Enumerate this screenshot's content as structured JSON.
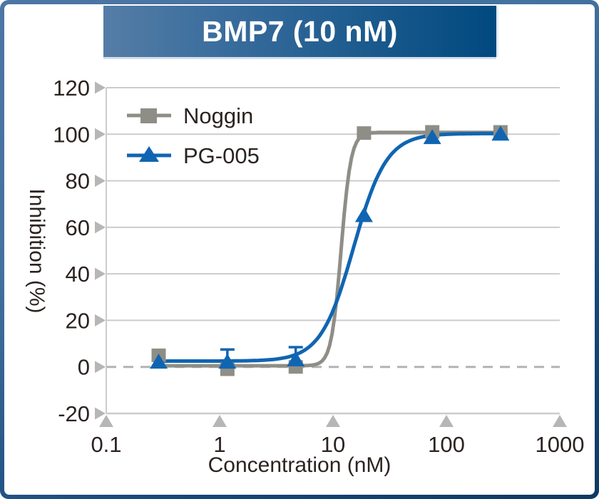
{
  "figure": {
    "title": "BMP7 (10 nM)"
  },
  "colors": {
    "banner_gradient_left": "#557da6",
    "banner_gradient_right": "#00497f",
    "frame_border_top": "#4d76a4",
    "frame_border_bottom": "#0e3a63",
    "grid_line": "#cccccc",
    "zero_dash_line": "#b3b3b3",
    "tick_triangle": "#b6b6b6",
    "text": "#2b2320",
    "series_noggin": "#8f8e86",
    "series_pg005": "#1065b2"
  },
  "chart_data": {
    "type": "line",
    "title": "BMP7 (10 nM)",
    "xlabel": "Concentration (nM)",
    "ylabel": "Inhibition (%)",
    "x_scale": "log",
    "xlim": [
      0.1,
      1000
    ],
    "ylim": [
      -20,
      120
    ],
    "x_ticks": [
      0.1,
      1,
      10,
      100,
      1000
    ],
    "y_ticks": [
      120,
      100,
      80,
      60,
      40,
      20,
      0,
      -20
    ],
    "grid": "horizontal",
    "zero_line_style": "dashed",
    "legend_position": "top-left",
    "series": [
      {
        "name": "Noggin",
        "color": "#8f8e86",
        "marker": "square",
        "x": [
          0.29,
          1.17,
          4.69,
          18.75,
          75,
          300
        ],
        "y": [
          5,
          -1,
          0,
          100.5,
          101,
          101
        ],
        "y_err_up": [
          0,
          0,
          0,
          0,
          0,
          0
        ],
        "fit": {
          "bottom": 0.5,
          "top": 100.8,
          "ec50": 11.8,
          "hill": 10
        }
      },
      {
        "name": "PG-005",
        "color": "#1065b2",
        "marker": "triangle",
        "x": [
          0.29,
          1.17,
          4.69,
          18.75,
          75,
          300
        ],
        "y": [
          2,
          2,
          3,
          65,
          98.5,
          100
        ],
        "y_err_up": [
          0,
          5.5,
          5.5,
          0,
          0,
          0
        ],
        "fit": {
          "bottom": 2.5,
          "top": 100.3,
          "ec50": 15.2,
          "hill": 3
        }
      }
    ]
  }
}
